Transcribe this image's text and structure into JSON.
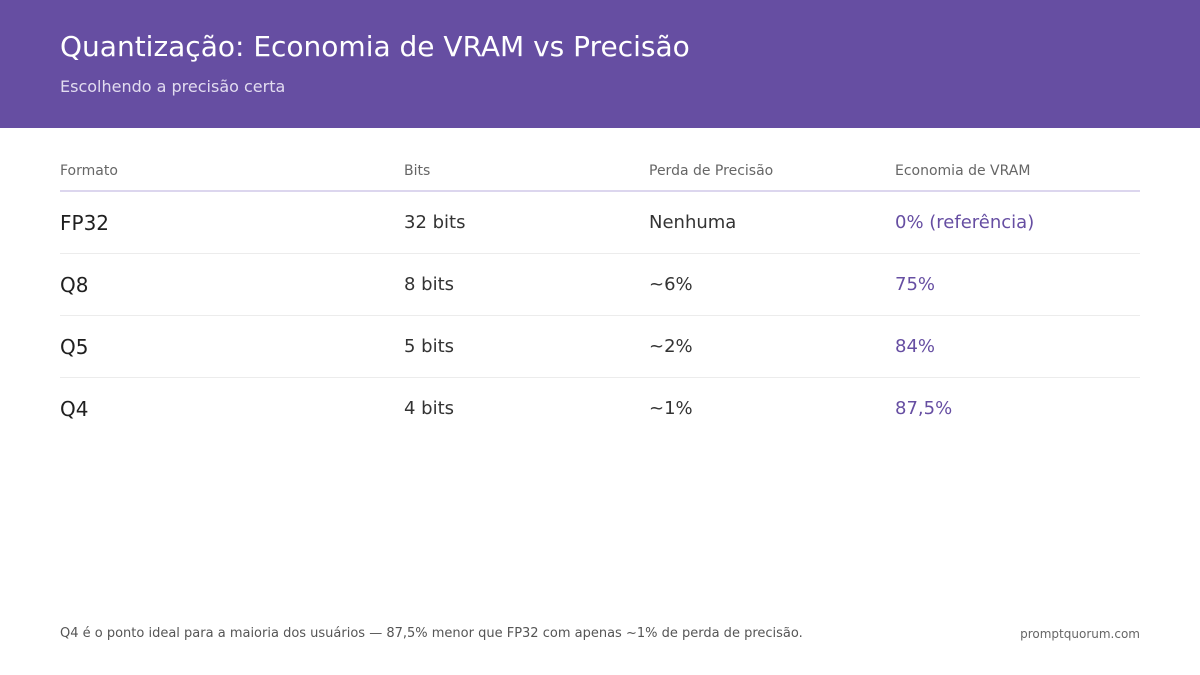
{
  "header": {
    "title": "Quantização: Economia de VRAM vs Precisão",
    "subtitle": "Escolhendo a precisão certa"
  },
  "table": {
    "columns": [
      "Formato",
      "Bits",
      "Perda de Precisão",
      "Economia de VRAM"
    ],
    "rows": [
      {
        "format": "FP32",
        "bits": "32 bits",
        "loss": "Nenhuma",
        "savings": "0% (referência)"
      },
      {
        "format": "Q8",
        "bits": "8 bits",
        "loss": "~6%",
        "savings": "75%"
      },
      {
        "format": "Q5",
        "bits": "5 bits",
        "loss": "~2%",
        "savings": "84%"
      },
      {
        "format": "Q4",
        "bits": "4 bits",
        "loss": "~1%",
        "savings": "87,5%"
      }
    ]
  },
  "footer": {
    "note": "Q4 é o ponto ideal para a maioria dos usuários — 87,5% menor que FP32 com apenas ~1% de perda de precisão.",
    "brand": "promptquorum.com"
  },
  "colors": {
    "header_bg": "#664ea2",
    "accent": "#664ea2"
  }
}
